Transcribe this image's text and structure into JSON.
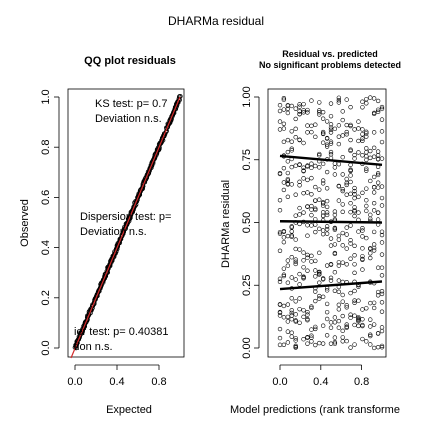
{
  "page_title": "DHARMa residual",
  "chart_data": [
    {
      "type": "scatter",
      "title": "QQ plot residuals",
      "xlabel": "Expected",
      "ylabel": "Observed",
      "xlim": [
        0,
        1
      ],
      "ylim": [
        0,
        1
      ],
      "x_ticks": [
        "0.0",
        "0.4",
        "0.8"
      ],
      "x_tick_values": [
        0.0,
        0.4,
        0.8
      ],
      "y_ticks": [
        "0.0",
        "0.2",
        "0.4",
        "0.6",
        "0.8",
        "1.0"
      ],
      "y_tick_values": [
        0.0,
        0.2,
        0.4,
        0.6,
        0.8,
        1.0
      ],
      "reference_line": {
        "from": [
          0,
          0
        ],
        "to": [
          1,
          1
        ],
        "color": "#d22a2a"
      },
      "points_description_values": {
        "x_start": 0.0,
        "x_end": 1.0,
        "y_start": 0.0,
        "y_end": 1.0
      },
      "annotations": [
        {
          "line1": "KS test: p= 0.7",
          "line2": "Deviation  n.s."
        },
        {
          "line1": "Dispersion test: p=",
          "line2": "Deviation  n.s."
        },
        {
          "line1": "ier test: p= 0.40381",
          "line2": "tion  n.s."
        }
      ]
    },
    {
      "type": "scatter",
      "title": "Residual vs. predicted",
      "subtitle": "No significant problems detected",
      "xlabel": "Model predictions (rank transforme",
      "ylabel": "DHARMa residual",
      "xlim": [
        0,
        1
      ],
      "ylim": [
        0,
        1
      ],
      "x_ticks": [
        "0.0",
        "0.4",
        "0.8"
      ],
      "x_tick_values": [
        0.0,
        0.4,
        0.8
      ],
      "y_ticks": [
        "0.00",
        "0.25",
        "0.50",
        "0.75",
        "1.00"
      ],
      "y_tick_values": [
        0.0,
        0.25,
        0.5,
        0.75,
        1.0
      ],
      "x_columns": [
        0.0,
        0.038,
        0.077,
        0.115,
        0.154,
        0.192,
        0.231,
        0.269,
        0.308,
        0.346,
        0.385,
        0.423,
        0.462,
        0.5,
        0.538,
        0.577,
        0.615,
        0.654,
        0.692,
        0.731,
        0.769,
        0.808,
        0.846,
        0.885,
        0.923,
        0.962,
        1.0
      ],
      "quantile_lines": [
        {
          "quantile": 0.75,
          "y_at_x0": 0.765,
          "y_at_x1": 0.73
        },
        {
          "quantile": 0.5,
          "y_at_x0": 0.505,
          "y_at_x1": 0.5
        },
        {
          "quantile": 0.25,
          "y_at_x0": 0.235,
          "y_at_x1": 0.265
        }
      ]
    }
  ]
}
